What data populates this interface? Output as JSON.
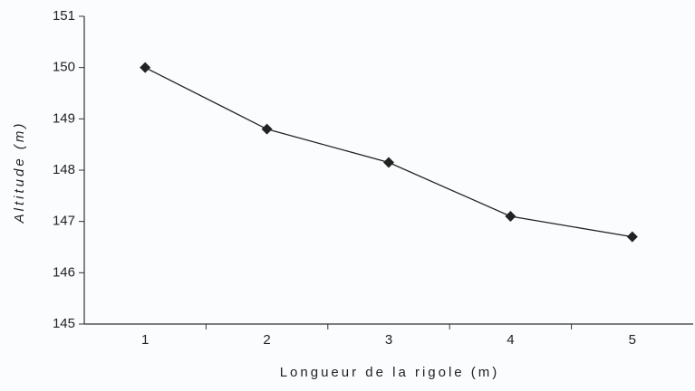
{
  "chart_data": {
    "type": "line",
    "x_label": "Longueur de la rigole (m)",
    "y_label": "Altitude (m)",
    "categories": [
      "1",
      "2",
      "3",
      "4",
      "5"
    ],
    "values": [
      150,
      148.8,
      148.15,
      147.1,
      146.7
    ],
    "color": "#222222",
    "ylim": [
      145,
      151
    ],
    "yticks": [
      145,
      146,
      147,
      148,
      149,
      150,
      151
    ]
  }
}
